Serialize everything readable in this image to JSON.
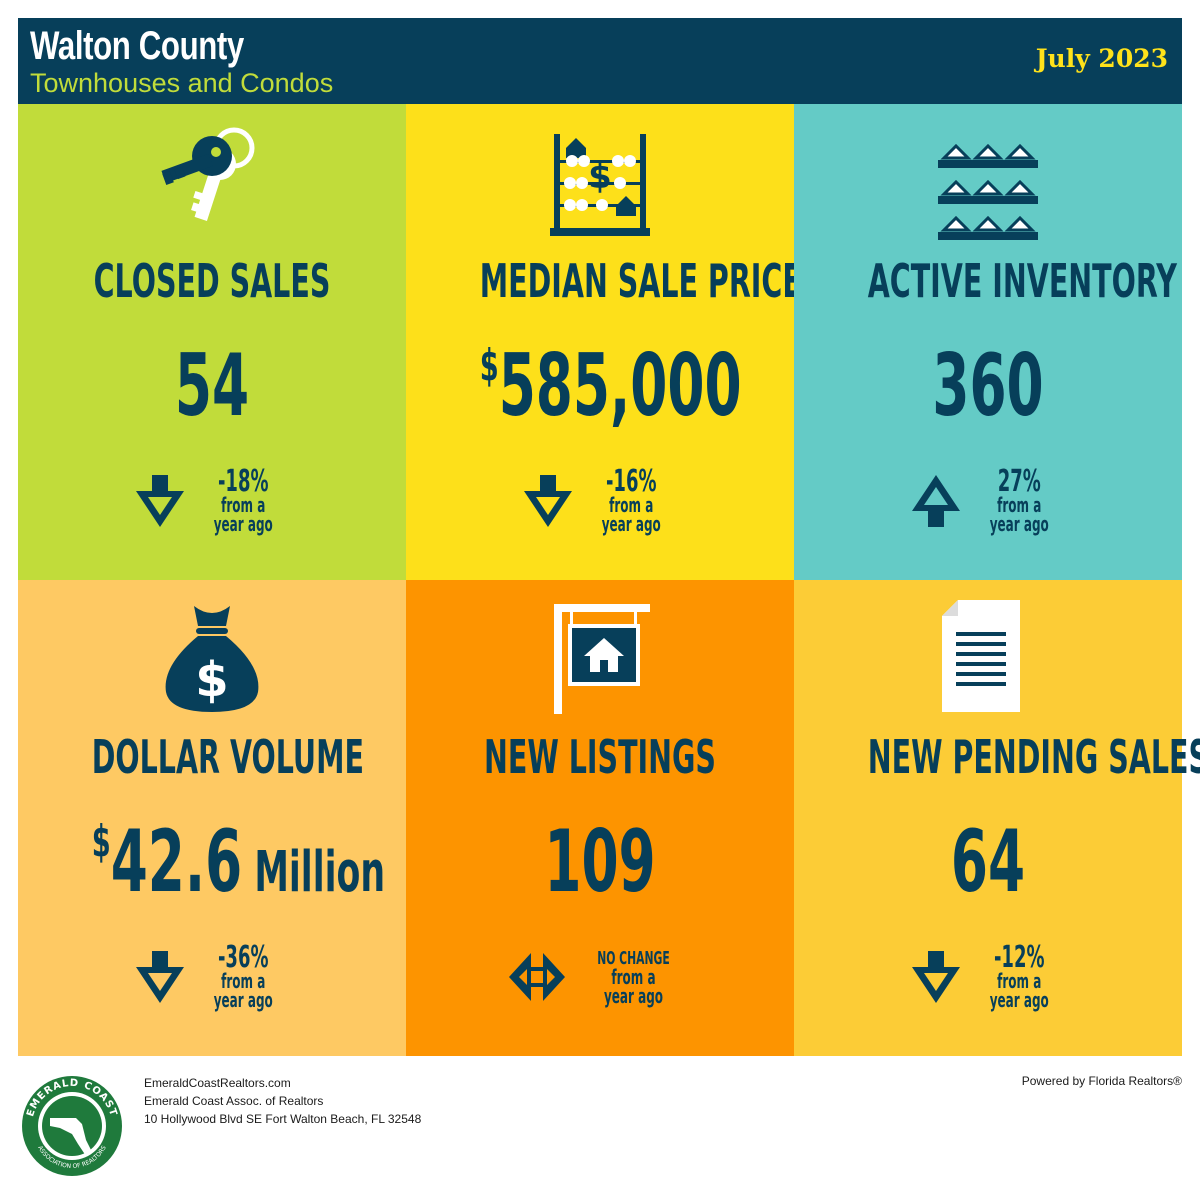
{
  "header": {
    "county": "Walton County",
    "subtitle": "Townhouses and Condos",
    "date": "July 2023"
  },
  "tiles": [
    {
      "label": "CLOSED SALES",
      "value": "54",
      "prefix": "",
      "unit": "",
      "change": "-18%",
      "change_sub1": "from a",
      "change_sub2": "year ago",
      "direction": "down",
      "color": "#c1dc3a",
      "icon": "keys-icon"
    },
    {
      "label": "MEDIAN SALE PRICE",
      "value": "585,000",
      "prefix": "$",
      "unit": "",
      "change": "-16%",
      "change_sub1": "from a",
      "change_sub2": "year ago",
      "direction": "down",
      "color": "#fde01a",
      "icon": "abacus-icon"
    },
    {
      "label": "ACTIVE INVENTORY",
      "value": "360",
      "prefix": "",
      "unit": "",
      "change": "27%",
      "change_sub1": "from a",
      "change_sub2": "year ago",
      "direction": "up",
      "color": "#64cbc6",
      "icon": "houses-shelf-icon"
    },
    {
      "label": "DOLLAR VOLUME",
      "value": "42.6",
      "prefix": "$",
      "unit": " Million",
      "change": "-36%",
      "change_sub1": "from a",
      "change_sub2": "year ago",
      "direction": "down",
      "color": "#fec963",
      "icon": "money-bag-icon"
    },
    {
      "label": "NEW LISTINGS",
      "value": "109",
      "prefix": "",
      "unit": "",
      "change": "NO CHANGE",
      "change_sub1": "from a",
      "change_sub2": "year ago",
      "direction": "none",
      "color": "#fd9400",
      "icon": "for-sale-sign-icon"
    },
    {
      "label": "NEW PENDING SALES",
      "value": "64",
      "prefix": "",
      "unit": "",
      "change": "-12%",
      "change_sub1": "from a",
      "change_sub2": "year ago",
      "direction": "down",
      "color": "#fccc36",
      "icon": "document-icon"
    }
  ],
  "footer": {
    "logo_text_top": "EMERALD COAST",
    "logo_text_bottom": "ASSOCIATION OF REALTORS",
    "website": "EmeraldCoastRealtors.com",
    "org": "Emerald Coast Assoc. of Realtors",
    "address": "10 Hollywood Blvd SE Fort Walton Beach, FL 32548",
    "powered": "Powered by Florida Realtors®"
  }
}
